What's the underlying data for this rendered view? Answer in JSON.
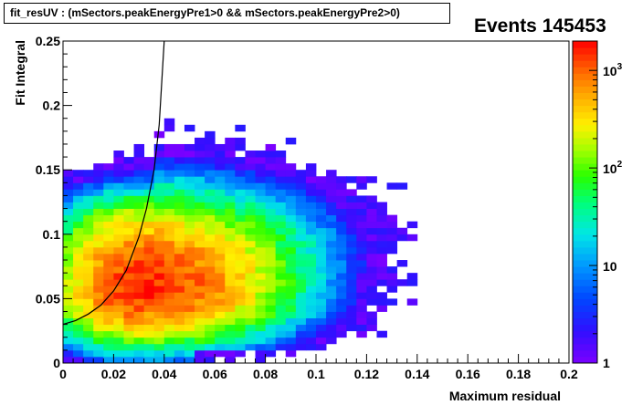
{
  "chart_data": {
    "type": "heatmap",
    "title": "fit_resUV : (mSectors.peakEnergyPre1>0 && mSectors.peakEnergyPre2>0)",
    "stats_title": "Events 145453",
    "xlabel": "Maximum residual",
    "ylabel": "Fit Integral",
    "xlim": [
      0,
      0.2
    ],
    "ylim": [
      0,
      0.25
    ],
    "x_ticks": [
      "0",
      "0.02",
      "0.04",
      "0.06",
      "0.08",
      "0.1",
      "0.12",
      "0.14",
      "0.16",
      "0.18",
      "0.2"
    ],
    "y_ticks": [
      "0",
      "0.05",
      "0.1",
      "0.15",
      "0.2",
      "0.25"
    ],
    "colorbar": {
      "scale": "log",
      "range": [
        1,
        2000
      ],
      "tick_labels": [
        {
          "base": "1",
          "exp": ""
        },
        {
          "base": "10",
          "exp": ""
        },
        {
          "base": "10",
          "exp": "2"
        },
        {
          "base": "10",
          "exp": "3"
        }
      ]
    },
    "bins": {
      "nx": 50,
      "ny": 50
    },
    "density_model": {
      "peak_x": 0.03,
      "peak_y": 0.058,
      "peak_count": 1500,
      "note_cells_sparse_above": 0.12
    },
    "curve": {
      "x": [
        0.0,
        0.005,
        0.01,
        0.015,
        0.02,
        0.025,
        0.03,
        0.033,
        0.036,
        0.038,
        0.04
      ],
      "y": [
        0.03,
        0.033,
        0.038,
        0.045,
        0.056,
        0.072,
        0.098,
        0.12,
        0.15,
        0.185,
        0.25
      ]
    },
    "grid": false,
    "legend": "none"
  }
}
